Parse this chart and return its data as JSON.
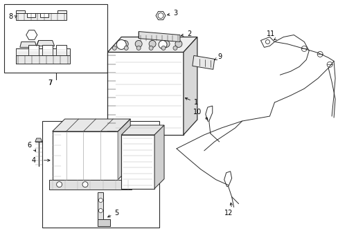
{
  "bg_color": "#ffffff",
  "line_color": "#2a2a2a",
  "fig_width": 4.89,
  "fig_height": 3.6,
  "dpi": 100,
  "lw": 0.7,
  "fs": 7.0
}
